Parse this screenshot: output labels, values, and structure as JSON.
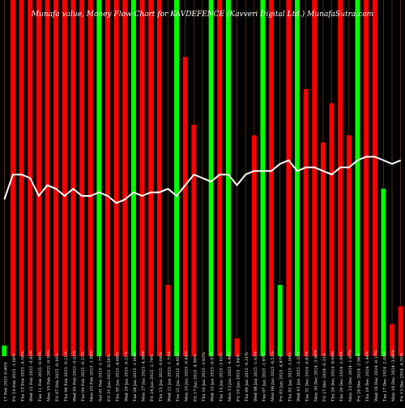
{
  "chart_data": {
    "type": "bar",
    "title": "Munafa value, Money Flow Chart for KAVDEFENCE (Kavveri Digital Ltd.) MunafaSutra.com",
    "categories": [
      "17 Feb 2025 0.00%",
      "Fri 14 Feb 2025 -1.66%",
      "Thu 13 Feb 2025 -4.58%",
      "Wed 12 Feb 2025 -0.82%",
      "Tue 11 Feb 2025 -0.90%",
      "Mon 10 Feb 2025 -0.30%",
      "Fri 07 Feb 2025 -0.16%",
      "Thu 06 Feb 2025 -0.21%",
      "Wed 05 Feb 2025 -0.05%",
      "Tue 04 Feb 2025 -0.37%",
      "Mon 03 Feb 2025 -1.86%",
      "Sat 01 Feb 2025 -1.77%",
      "Fri 31 Jan 2025 -0.56%",
      "Thu 30 Jan 2025 -4.68%",
      "Wed 29 Jan 2025 -0.21%",
      "Tue 28 Jan 2025 -1.00%",
      "Mon 27 Jan 2025 -4.99%",
      "Fri 24 Jan 2025 -2.79%",
      "Thu 23 Jan 2025 -0.64%",
      "Wed 22 Jan 2025 -1.73%",
      "Tue 21 Jan 2025 -4.95%",
      "Mon 20 Jan 2025 -0.64%",
      "Fri 17 Jan 2025 -4.99%",
      "Thu 16 Jan 2025 -3.95%",
      "Wed 15 Jan 2025 -0.97%",
      "Tue 14 Jan 2025 -3.62%",
      "Mon 13 Jan 2025 -4.89%",
      "Fri 10 Jan 2025 -1.94%",
      "Thu 09 Jan 2025 -0.31%",
      "Wed 08 Jan 2025 -1.03%",
      "Tue 07 Jan 2025 -1.97%",
      "Mon 06 Jan 2025 -0.51%",
      "Fri 03 Jan 2025 -4.87%",
      "Thu 02 Jan 2025 -5.00%",
      "Wed 01 Jan 2025 -2.20%",
      "Tue 31 Dec 2024 -0.83%",
      "Mon 30 Dec 2024 -3.98%",
      "Fri 27 Dec 2024 -0.33%",
      "Thu 26 Dec 2024 -0.09%",
      "Tue 24 Dec 2024 -3.99%",
      "Mon 23 Dec 2024 -1.87%",
      "Fri 20 Dec 2024 -2.96%",
      "Thu 19 Dec 2024 -1.44%",
      "Wed 18 Dec 2024 -0.17%",
      "Tue 17 Dec 2024 -2.00%",
      "Mon 16 Dec 2024 -3.86%",
      "Fri 13 Dec 2024 -4.35%"
    ],
    "series": [
      {
        "color": "#00ff00",
        "values": [
          3,
          0,
          0,
          0,
          0,
          0,
          0,
          0,
          0,
          0,
          0,
          100,
          0,
          0,
          0,
          100,
          0,
          0,
          0,
          0,
          100,
          0,
          0,
          0,
          100,
          0,
          100,
          0,
          0,
          0,
          100,
          0,
          20,
          0,
          100,
          0,
          0,
          0,
          0,
          0,
          0,
          100,
          0,
          0,
          47,
          0,
          0
        ]
      },
      {
        "color": "#ff0000",
        "values": [
          0,
          100,
          100,
          100,
          100,
          100,
          100,
          100,
          100,
          100,
          100,
          0,
          100,
          100,
          100,
          0,
          100,
          100,
          100,
          20,
          0,
          84,
          65,
          0,
          0,
          100,
          0,
          5,
          0,
          62,
          0,
          100,
          0,
          100,
          0,
          75,
          100,
          60,
          71,
          100,
          62,
          0,
          100,
          100,
          0,
          9,
          14
        ]
      }
    ],
    "line": [
      44,
      51,
      51,
      50,
      45,
      48,
      47,
      45,
      47,
      45,
      45,
      46,
      45,
      43,
      44,
      46,
      45,
      46,
      46,
      47,
      45,
      48,
      51,
      50,
      49,
      51,
      51,
      48,
      51,
      52,
      52,
      52,
      54,
      55,
      52,
      53,
      53,
      52,
      51,
      53,
      53,
      55,
      56,
      56,
      55,
      54,
      55
    ],
    "ylim": [
      0,
      100
    ],
    "grid": true
  }
}
